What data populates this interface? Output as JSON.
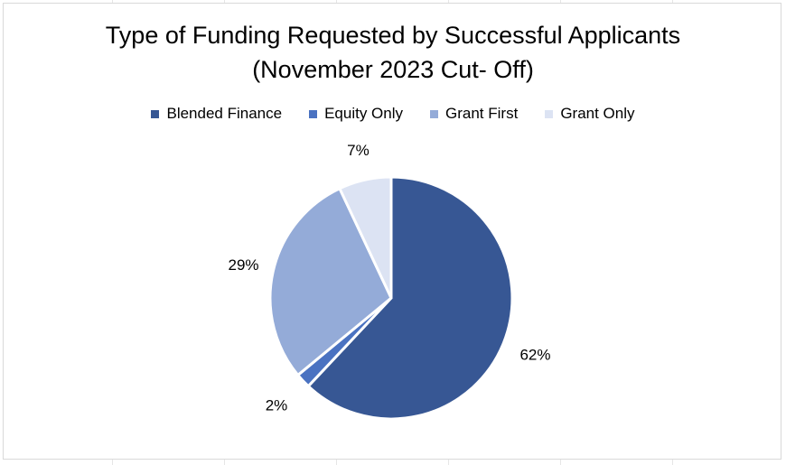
{
  "chart_data": {
    "type": "pie",
    "title_line1": "Type of Funding Requested by Successful Applicants",
    "title_line2": "(November 2023 Cut- Off)",
    "legend_position": "top",
    "categories": [
      "Blended Finance",
      "Equity Only",
      "Grant First",
      "Grant Only"
    ],
    "values": [
      62,
      2,
      29,
      7
    ],
    "labels": [
      "62%",
      "2%",
      "29%",
      "7%"
    ],
    "colors": [
      "#375794",
      "#4a72c1",
      "#94abd8",
      "#dce3f3"
    ]
  }
}
